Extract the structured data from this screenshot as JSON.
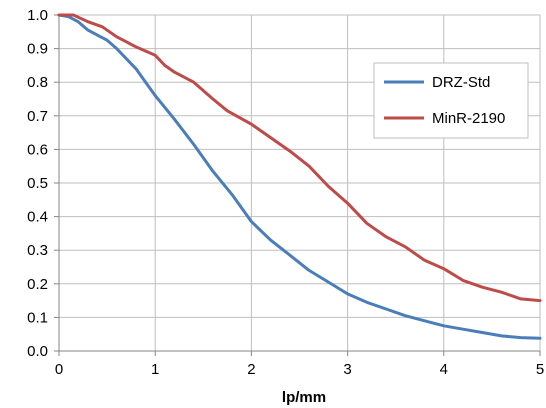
{
  "chart_data": {
    "type": "line",
    "title": "",
    "xlabel": "lp/mm",
    "ylabel": "",
    "xlim": [
      0,
      5
    ],
    "ylim": [
      0,
      1
    ],
    "x_ticks": [
      "0",
      "1",
      "2",
      "3",
      "4",
      "5"
    ],
    "y_ticks": [
      "0.0",
      "0.1",
      "0.2",
      "0.3",
      "0.4",
      "0.5",
      "0.6",
      "0.7",
      "0.8",
      "0.9",
      "1.0"
    ],
    "grid": true,
    "legend_position": "right",
    "series": [
      {
        "name": "DRZ-Std",
        "color": "#4a7ebb",
        "points": [
          [
            0,
            1.0
          ],
          [
            0.1,
            0.995
          ],
          [
            0.2,
            0.98
          ],
          [
            0.3,
            0.955
          ],
          [
            0.4,
            0.94
          ],
          [
            0.5,
            0.925
          ],
          [
            0.6,
            0.9
          ],
          [
            0.7,
            0.87
          ],
          [
            0.8,
            0.84
          ],
          [
            0.9,
            0.8
          ],
          [
            1.0,
            0.76
          ],
          [
            1.2,
            0.69
          ],
          [
            1.4,
            0.615
          ],
          [
            1.6,
            0.535
          ],
          [
            1.8,
            0.465
          ],
          [
            2.0,
            0.385
          ],
          [
            2.2,
            0.33
          ],
          [
            2.4,
            0.285
          ],
          [
            2.6,
            0.24
          ],
          [
            2.8,
            0.205
          ],
          [
            3.0,
            0.17
          ],
          [
            3.2,
            0.145
          ],
          [
            3.4,
            0.125
          ],
          [
            3.6,
            0.105
          ],
          [
            3.8,
            0.09
          ],
          [
            4.0,
            0.075
          ],
          [
            4.2,
            0.065
          ],
          [
            4.4,
            0.055
          ],
          [
            4.6,
            0.045
          ],
          [
            4.8,
            0.04
          ],
          [
            5.0,
            0.038
          ]
        ]
      },
      {
        "name": "MinR-2190",
        "color": "#be4b48",
        "points": [
          [
            0,
            1.0
          ],
          [
            0.15,
            1.0
          ],
          [
            0.3,
            0.98
          ],
          [
            0.45,
            0.965
          ],
          [
            0.6,
            0.935
          ],
          [
            0.8,
            0.905
          ],
          [
            1.0,
            0.88
          ],
          [
            1.1,
            0.85
          ],
          [
            1.2,
            0.83
          ],
          [
            1.4,
            0.8
          ],
          [
            1.6,
            0.75
          ],
          [
            1.75,
            0.715
          ],
          [
            2.0,
            0.675
          ],
          [
            2.2,
            0.635
          ],
          [
            2.4,
            0.595
          ],
          [
            2.6,
            0.55
          ],
          [
            2.8,
            0.49
          ],
          [
            3.0,
            0.44
          ],
          [
            3.2,
            0.38
          ],
          [
            3.4,
            0.34
          ],
          [
            3.6,
            0.31
          ],
          [
            3.8,
            0.27
          ],
          [
            4.0,
            0.245
          ],
          [
            4.2,
            0.21
          ],
          [
            4.4,
            0.19
          ],
          [
            4.6,
            0.175
          ],
          [
            4.8,
            0.155
          ],
          [
            5.0,
            0.15
          ]
        ]
      }
    ]
  }
}
